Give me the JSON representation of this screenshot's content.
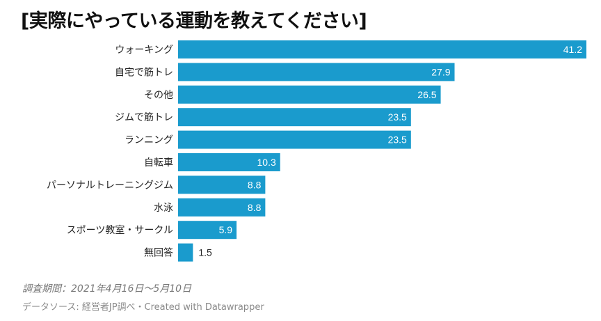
{
  "chart_data": {
    "type": "bar",
    "orientation": "horizontal",
    "title": "[実際にやっている運動を教えてください]",
    "categories": [
      "ウォーキング",
      "自宅で筋トレ",
      "その他",
      "ジムで筋トレ",
      "ランニング",
      "自転車",
      "パーソナルトレーニングジム",
      "水泳",
      "スポーツ教室・サークル",
      "無回答"
    ],
    "values": [
      41.2,
      27.9,
      26.5,
      23.5,
      23.5,
      10.3,
      8.8,
      8.8,
      5.9,
      1.5
    ],
    "value_labels": [
      "41.2",
      "27.9",
      "26.5",
      "23.5",
      "23.5",
      "10.3",
      "8.8",
      "8.8",
      "5.9",
      "1.5"
    ],
    "xlabel": "",
    "ylabel": "",
    "xlim": [
      0,
      41.2
    ],
    "grid": false,
    "bar_color": "#1a9bcd"
  },
  "footer": {
    "period": "調査期間：2021年4月16日〜5月10日",
    "source": "データソース: 経営者JP調べ・Created with Datawrapper"
  }
}
